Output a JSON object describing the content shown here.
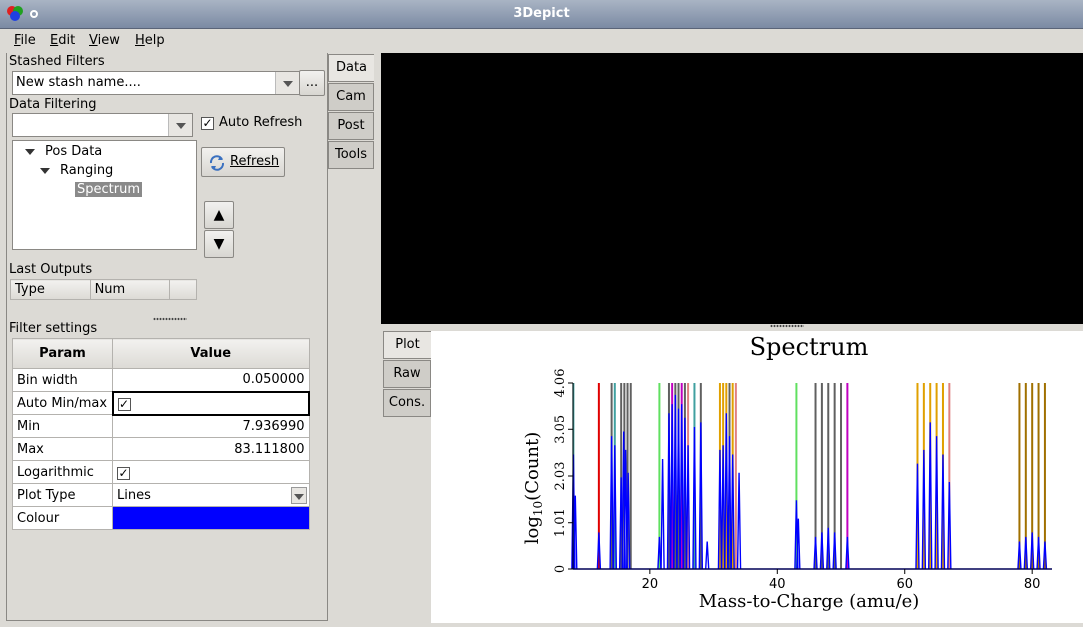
{
  "window": {
    "title": "3Depict"
  },
  "menu": [
    {
      "label": "File",
      "key": "F",
      "rest": "ile"
    },
    {
      "label": "Edit",
      "key": "E",
      "rest": "dit"
    },
    {
      "label": "View",
      "key": "V",
      "rest": "iew"
    },
    {
      "label": "Help",
      "key": "H",
      "rest": "elp"
    }
  ],
  "stash": {
    "label": "Stashed Filters",
    "value": "New stash name....",
    "more_label": "..."
  },
  "data_filtering": {
    "label": "Data Filtering",
    "auto_refresh_label": "Auto Refresh",
    "auto_refresh_checked": true,
    "refresh_label": "Refresh",
    "up_label": "▲",
    "down_label": "▼",
    "tree": [
      {
        "label": "Pos Data",
        "level": 0,
        "expanded": true
      },
      {
        "label": "Ranging",
        "level": 1,
        "expanded": true
      },
      {
        "label": "Spectrum",
        "level": 2,
        "selected": true
      }
    ]
  },
  "last_outputs": {
    "label": "Last Outputs",
    "columns": [
      "Type",
      "Num"
    ]
  },
  "filter_settings": {
    "label": "Filter settings",
    "columns": [
      "Param",
      "Value"
    ],
    "rows": [
      {
        "param": "Bin width",
        "value": "0.050000"
      },
      {
        "param": "Auto Min/max",
        "value": "checkbox",
        "checked": true
      },
      {
        "param": "Min",
        "value": "7.936990"
      },
      {
        "param": "Max",
        "value": "83.111800"
      },
      {
        "param": "Logarithmic",
        "value": "checkbox",
        "checked": true
      },
      {
        "param": "Plot Type",
        "value": "Lines"
      },
      {
        "param": "Colour",
        "value": "color",
        "color": "#0000ff"
      }
    ]
  },
  "side_tabs": [
    "Data",
    "Cam",
    "Post",
    "Tools"
  ],
  "plot_tabs": [
    "Plot",
    "Raw",
    "Cons."
  ],
  "chart_data": {
    "type": "line",
    "title": "Spectrum",
    "xlabel": "Mass-to-Charge (amu/e)",
    "ylabel_prefix": "log",
    "ylabel_sub": "10",
    "ylabel_suffix": "(Count)",
    "xlim": [
      7.94,
      83.11
    ],
    "ylim": [
      0,
      4.06
    ],
    "xticks": [
      20,
      40,
      60,
      80
    ],
    "yticks": [
      0,
      1.01,
      2.03,
      3.05,
      4.06
    ],
    "series_color": "#0000ff",
    "peaks": [
      {
        "x": 8.0,
        "y": 2.5
      },
      {
        "x": 8.3,
        "y": 1.6
      },
      {
        "x": 12.0,
        "y": 0.8
      },
      {
        "x": 14.0,
        "y": 2.9
      },
      {
        "x": 14.5,
        "y": 2.7
      },
      {
        "x": 15.5,
        "y": 2.0
      },
      {
        "x": 15.9,
        "y": 3.0
      },
      {
        "x": 16.2,
        "y": 2.6
      },
      {
        "x": 16.6,
        "y": 2.1
      },
      {
        "x": 21.5,
        "y": 0.7
      },
      {
        "x": 22.0,
        "y": 2.4
      },
      {
        "x": 23.0,
        "y": 3.4
      },
      {
        "x": 23.5,
        "y": 3.6
      },
      {
        "x": 24.0,
        "y": 3.8
      },
      {
        "x": 24.5,
        "y": 3.5
      },
      {
        "x": 25.0,
        "y": 3.6
      },
      {
        "x": 25.5,
        "y": 3.3
      },
      {
        "x": 26.0,
        "y": 2.7
      },
      {
        "x": 27.0,
        "y": 3.1
      },
      {
        "x": 28.0,
        "y": 3.2
      },
      {
        "x": 29.0,
        "y": 0.6
      },
      {
        "x": 31.0,
        "y": 2.6
      },
      {
        "x": 31.5,
        "y": 2.7
      },
      {
        "x": 32.0,
        "y": 3.4
      },
      {
        "x": 32.5,
        "y": 2.9
      },
      {
        "x": 33.0,
        "y": 2.5
      },
      {
        "x": 34.0,
        "y": 2.1
      },
      {
        "x": 43.0,
        "y": 1.5
      },
      {
        "x": 43.3,
        "y": 1.1
      },
      {
        "x": 46.0,
        "y": 0.7
      },
      {
        "x": 47.0,
        "y": 0.8
      },
      {
        "x": 48.0,
        "y": 0.9
      },
      {
        "x": 49.0,
        "y": 0.8
      },
      {
        "x": 51.0,
        "y": 0.7
      },
      {
        "x": 62.0,
        "y": 2.3
      },
      {
        "x": 63.0,
        "y": 2.6
      },
      {
        "x": 64.0,
        "y": 3.2
      },
      {
        "x": 65.0,
        "y": 2.9
      },
      {
        "x": 66.0,
        "y": 2.5
      },
      {
        "x": 67.0,
        "y": 1.9
      },
      {
        "x": 78.0,
        "y": 0.6
      },
      {
        "x": 79.0,
        "y": 0.7
      },
      {
        "x": 80.0,
        "y": 0.8
      },
      {
        "x": 81.0,
        "y": 0.7
      },
      {
        "x": 82.0,
        "y": 0.6
      }
    ],
    "range_lines": [
      {
        "x": 8.0,
        "color": "#40a0a0"
      },
      {
        "x": 12.0,
        "color": "#e00000"
      },
      {
        "x": 14.0,
        "color": "#606060"
      },
      {
        "x": 14.5,
        "color": "#40a0a0"
      },
      {
        "x": 15.5,
        "color": "#606060"
      },
      {
        "x": 16.0,
        "color": "#606060"
      },
      {
        "x": 16.5,
        "color": "#606060"
      },
      {
        "x": 17.0,
        "color": "#606060"
      },
      {
        "x": 21.5,
        "color": "#60e060"
      },
      {
        "x": 23.0,
        "color": "#606060"
      },
      {
        "x": 23.5,
        "color": "#c000c0"
      },
      {
        "x": 24.0,
        "color": "#606060"
      },
      {
        "x": 24.5,
        "color": "#606060"
      },
      {
        "x": 25.0,
        "color": "#c000c0"
      },
      {
        "x": 25.5,
        "color": "#606060"
      },
      {
        "x": 26.0,
        "color": "#e08080"
      },
      {
        "x": 27.0,
        "color": "#40a0a0"
      },
      {
        "x": 28.0,
        "color": "#606060"
      },
      {
        "x": 31.0,
        "color": "#e0a000"
      },
      {
        "x": 31.5,
        "color": "#e0a000"
      },
      {
        "x": 32.0,
        "color": "#e0a000"
      },
      {
        "x": 32.5,
        "color": "#606060"
      },
      {
        "x": 33.0,
        "color": "#e0a000"
      },
      {
        "x": 33.5,
        "color": "#e08080"
      },
      {
        "x": 43.0,
        "color": "#60e060"
      },
      {
        "x": 46.0,
        "color": "#606060"
      },
      {
        "x": 47.0,
        "color": "#606060"
      },
      {
        "x": 48.0,
        "color": "#606060"
      },
      {
        "x": 49.0,
        "color": "#606060"
      },
      {
        "x": 50.0,
        "color": "#606060"
      },
      {
        "x": 51.0,
        "color": "#c000c0"
      },
      {
        "x": 62.0,
        "color": "#e0a000"
      },
      {
        "x": 63.0,
        "color": "#e0a000"
      },
      {
        "x": 64.0,
        "color": "#e0a000"
      },
      {
        "x": 65.0,
        "color": "#e0a000"
      },
      {
        "x": 66.0,
        "color": "#e0a000"
      },
      {
        "x": 67.0,
        "color": "#e08080"
      },
      {
        "x": 78.0,
        "color": "#a07000"
      },
      {
        "x": 79.0,
        "color": "#a07000"
      },
      {
        "x": 80.0,
        "color": "#a07000"
      },
      {
        "x": 81.0,
        "color": "#a07000"
      },
      {
        "x": 82.0,
        "color": "#a07000"
      }
    ]
  }
}
